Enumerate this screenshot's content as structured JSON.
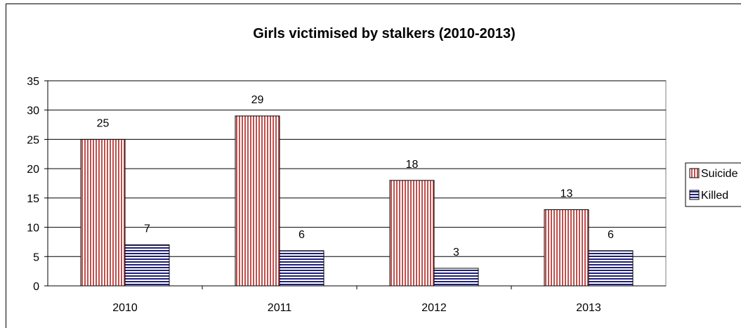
{
  "chart_data": {
    "type": "bar",
    "title": "Girls victimised by stalkers (2010-2013)",
    "xlabel": "",
    "ylabel": "",
    "categories": [
      "2010",
      "2011",
      "2012",
      "2013"
    ],
    "series": [
      {
        "name": "Suicide",
        "values": [
          25,
          29,
          18,
          13
        ],
        "color": "#c0504d",
        "pattern": "vertical-stripes"
      },
      {
        "name": "Killed",
        "values": [
          7,
          6,
          3,
          6
        ],
        "color": "#1f1f7a",
        "pattern": "horizontal-stripes"
      }
    ],
    "ylim": [
      0,
      35
    ],
    "yticks": [
      0,
      5,
      10,
      15,
      20,
      25,
      30,
      35
    ],
    "grid": true,
    "legend": "right",
    "data_labels": true
  }
}
